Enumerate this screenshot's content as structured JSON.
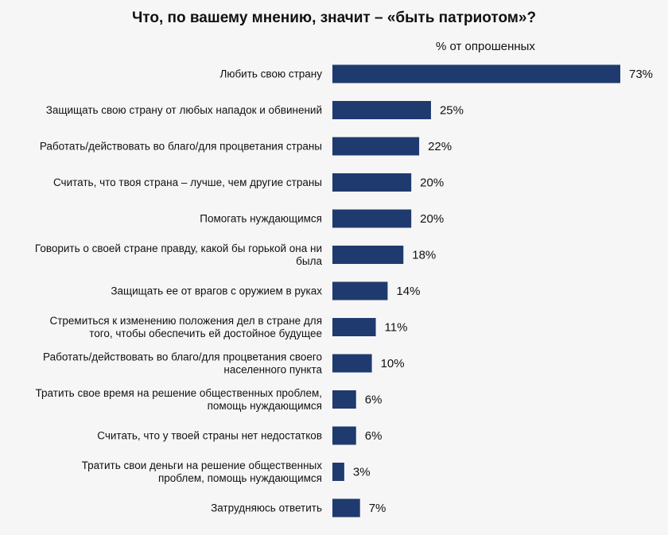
{
  "chart_data": {
    "type": "bar",
    "orientation": "horizontal",
    "title": "Что, по вашему мнению, значит – «быть патриотом»?",
    "subtitle": "% от опрошенных",
    "value_suffix": "%",
    "xlim": [
      0,
      73
    ],
    "grid": false,
    "legend": "none",
    "bar_color": "#1f3a6e",
    "categories": [
      [
        "Любить свою страну"
      ],
      [
        "Защищать свою страну от любых нападок и обвинений"
      ],
      [
        "Работать/действовать во благо/для процветания страны"
      ],
      [
        "Считать, что твоя страна – лучше, чем другие страны"
      ],
      [
        "Помогать нуждающимся"
      ],
      [
        "Говорить о своей стране правду, какой бы горькой она ни",
        "была"
      ],
      [
        "Защищать ее от врагов с оружием в руках"
      ],
      [
        "Стремиться к изменению положения дел в стране для",
        "того, чтобы обеспечить ей достойное будущее"
      ],
      [
        "Работать/действовать во благо/для процветания своего",
        "населенного пункта"
      ],
      [
        "Тратить свое время на решение общественных проблем,",
        "помощь нуждающимся"
      ],
      [
        "Считать, что у твоей страны нет недостатков"
      ],
      [
        "Тратить свои деньги на решение общественных",
        "проблем, помощь нуждающимся"
      ],
      [
        "Затрудняюсь ответить"
      ]
    ],
    "values": [
      73,
      25,
      22,
      20,
      20,
      18,
      14,
      11,
      10,
      6,
      6,
      3,
      7
    ]
  }
}
